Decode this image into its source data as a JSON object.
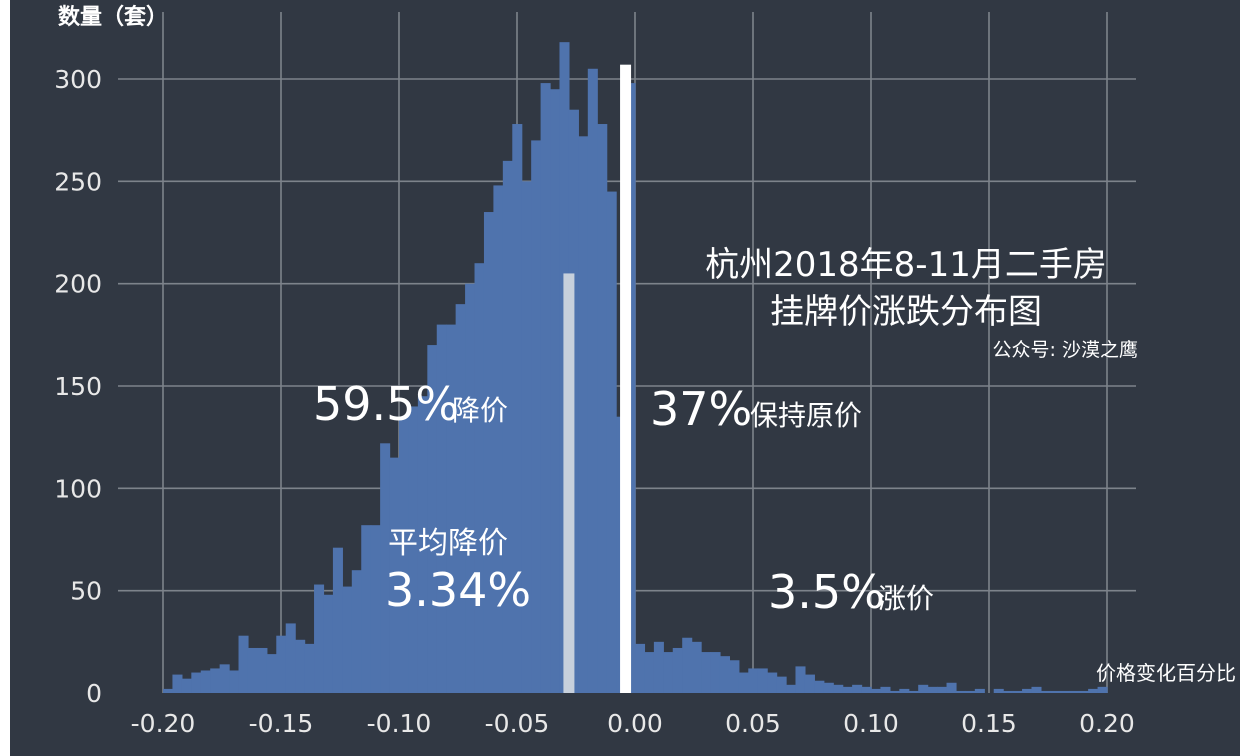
{
  "chart_data": {
    "type": "bar",
    "title_line1": "杭州2018年8-11月二手房",
    "title_line2": "挂牌价涨跌分布图",
    "source": "公众号: 沙漠之鹰",
    "ylabel": "数量（套）",
    "xlabel": "价格变化百分比",
    "xlim": [
      -0.2,
      0.2
    ],
    "ylim": [
      0,
      300
    ],
    "bin_width": 0.004,
    "x_ticks": [
      "-0.20",
      "-0.15",
      "-0.10",
      "-0.05",
      "0.00",
      "0.05",
      "0.10",
      "0.15",
      "0.20"
    ],
    "y_ticks": [
      "0",
      "50",
      "100",
      "150",
      "200",
      "250",
      "300"
    ],
    "x": [
      -0.198,
      -0.194,
      -0.19,
      -0.186,
      -0.182,
      -0.178,
      -0.174,
      -0.17,
      -0.166,
      -0.162,
      -0.158,
      -0.154,
      -0.15,
      -0.146,
      -0.142,
      -0.138,
      -0.134,
      -0.13,
      -0.126,
      -0.122,
      -0.118,
      -0.114,
      -0.11,
      -0.106,
      -0.102,
      -0.098,
      -0.094,
      -0.09,
      -0.086,
      -0.082,
      -0.078,
      -0.074,
      -0.07,
      -0.066,
      -0.062,
      -0.058,
      -0.054,
      -0.05,
      -0.046,
      -0.042,
      -0.038,
      -0.034,
      -0.03,
      -0.026,
      -0.022,
      -0.018,
      -0.014,
      -0.01,
      -0.006,
      -0.002,
      0.002,
      0.006,
      0.01,
      0.014,
      0.018,
      0.022,
      0.026,
      0.03,
      0.034,
      0.038,
      0.042,
      0.046,
      0.05,
      0.054,
      0.058,
      0.062,
      0.066,
      0.07,
      0.074,
      0.078,
      0.082,
      0.086,
      0.09,
      0.094,
      0.098,
      0.102,
      0.106,
      0.11,
      0.114,
      0.118,
      0.122,
      0.126,
      0.13,
      0.134,
      0.138,
      0.142,
      0.146,
      0.15,
      0.154,
      0.158,
      0.162,
      0.166,
      0.17,
      0.174,
      0.178,
      0.182,
      0.186,
      0.19,
      0.194,
      0.198
    ],
    "values": [
      2,
      9,
      7,
      10,
      11,
      12,
      14,
      11,
      28,
      22,
      22,
      19,
      28,
      34,
      26,
      24,
      53,
      48,
      71,
      52,
      60,
      82,
      82,
      122,
      115,
      135,
      140,
      145,
      170,
      180,
      180,
      190,
      200,
      210,
      235,
      248,
      260,
      278,
      250,
      270,
      298,
      295,
      318,
      285,
      272,
      305,
      278,
      245,
      135,
      298,
      24,
      20,
      25,
      20,
      22,
      27,
      25,
      20,
      20,
      18,
      16,
      10,
      12,
      12,
      10,
      8,
      4,
      13,
      9,
      6,
      5,
      4,
      3,
      4,
      3,
      2,
      3,
      1,
      2,
      1,
      4,
      3,
      3,
      5,
      1,
      1,
      2,
      0,
      2,
      1,
      1,
      2,
      3,
      1,
      1,
      1,
      1,
      1,
      2,
      3
    ],
    "highlights": [
      {
        "x": -0.028,
        "value": 205,
        "color": "#c7d0dc"
      },
      {
        "x": -0.004,
        "value": 307,
        "color": "#ffffff"
      }
    ],
    "annotations": {
      "decrease_pct": "59.5%",
      "decrease_label": "降价",
      "decrease_color": "#c5d6a4",
      "unchanged_pct": "37%",
      "unchanged_label": "保持原价",
      "avg_label": "平均降价",
      "avg_value": "3.34%",
      "increase_pct": "3.5%",
      "increase_label": "涨价",
      "increase_color": "#ee2222"
    },
    "colors": {
      "panel": "#313843",
      "bar": "#4f73ad",
      "grid": "#7d838b"
    }
  }
}
